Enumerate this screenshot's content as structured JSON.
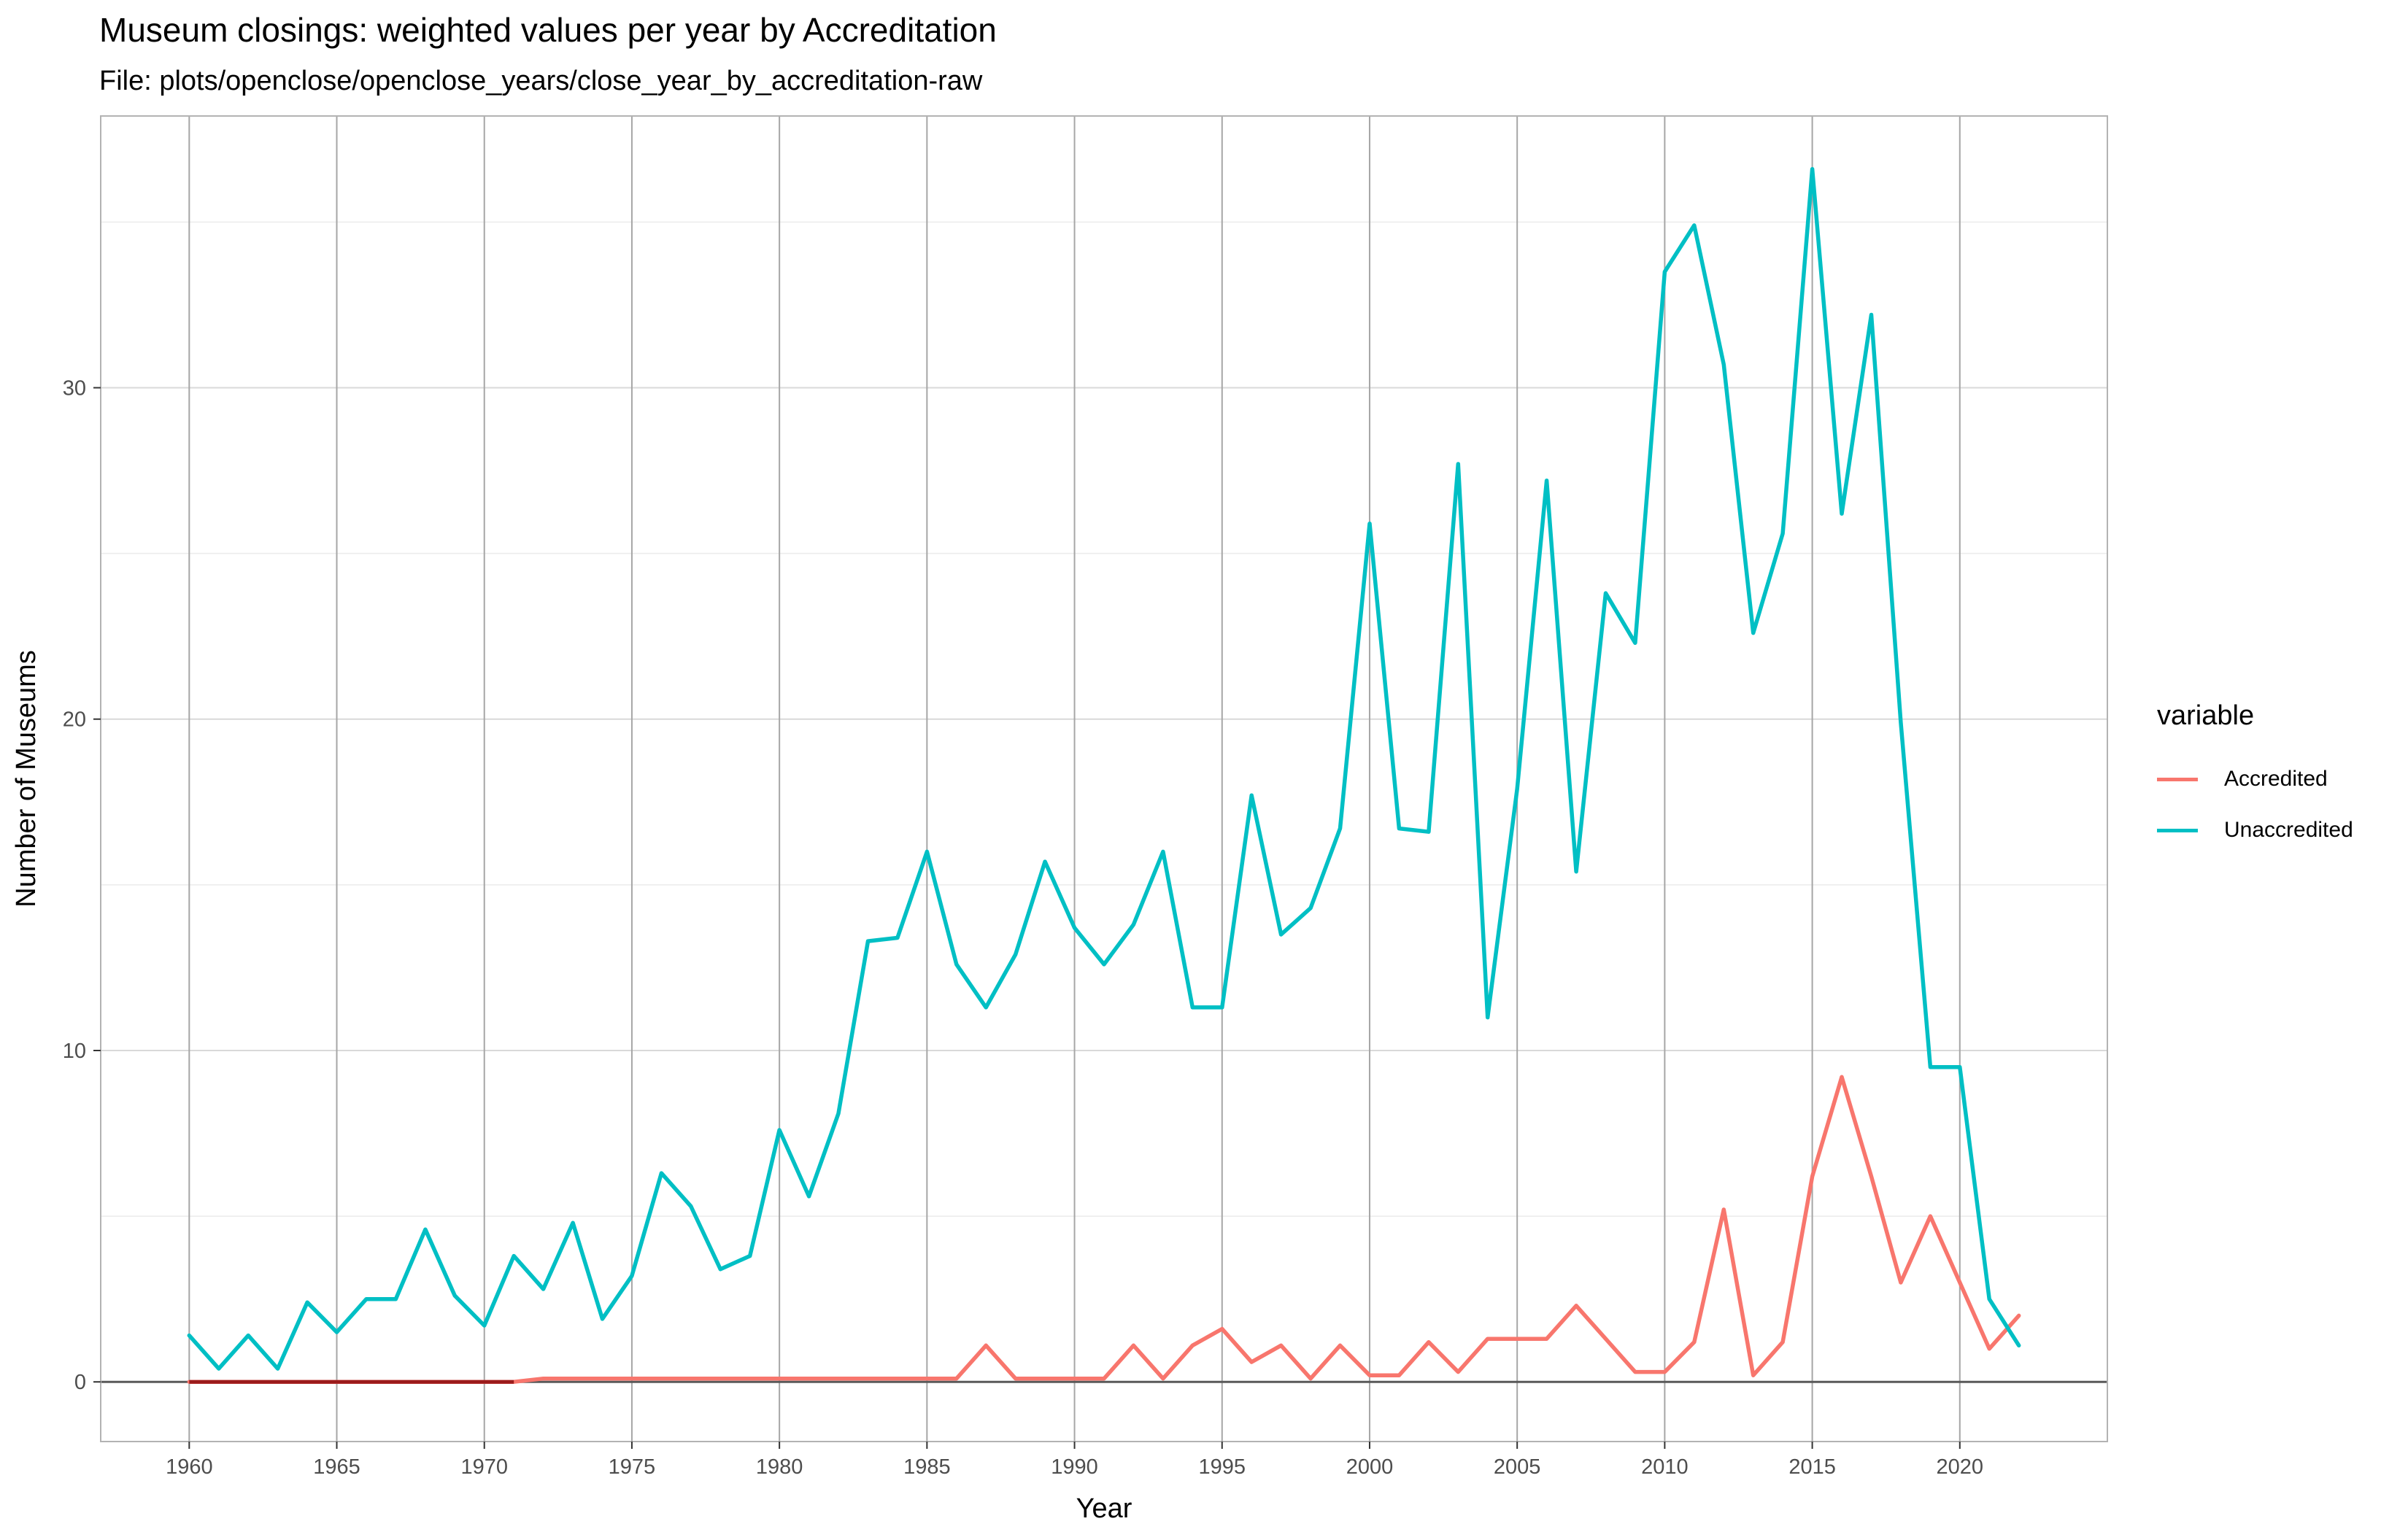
{
  "title": "Museum closings: weighted values per year by Accreditation",
  "subtitle": "File: plots/openclose/openclose_years/close_year_by_accreditation-raw",
  "chart_data": {
    "type": "line",
    "title": "Museum closings: weighted values per year by Accreditation",
    "subtitle": "File: plots/openclose/openclose_years/close_year_by_accreditation-raw",
    "xlabel": "Year",
    "ylabel": "Number of Museums",
    "xlim": [
      1957,
      2025
    ],
    "ylim": [
      -1.8,
      38.2
    ],
    "x_ticks": [
      1960,
      1965,
      1970,
      1975,
      1980,
      1985,
      1990,
      1995,
      2000,
      2005,
      2010,
      2015,
      2020
    ],
    "y_ticks": [
      0,
      10,
      20,
      30
    ],
    "grid": true,
    "legend": {
      "title": "variable",
      "placement": "right"
    },
    "x": [
      1960,
      1961,
      1962,
      1963,
      1964,
      1965,
      1966,
      1967,
      1968,
      1969,
      1970,
      1971,
      1972,
      1973,
      1974,
      1975,
      1976,
      1977,
      1978,
      1979,
      1980,
      1981,
      1982,
      1983,
      1984,
      1985,
      1986,
      1987,
      1988,
      1989,
      1990,
      1991,
      1992,
      1993,
      1994,
      1995,
      1996,
      1997,
      1998,
      1999,
      2000,
      2001,
      2002,
      2003,
      2004,
      2005,
      2006,
      2007,
      2008,
      2009,
      2010,
      2011,
      2012,
      2013,
      2014,
      2015,
      2016,
      2017,
      2018,
      2019,
      2020,
      2021,
      2022
    ],
    "series": [
      {
        "name": "Accredited",
        "color": "#F8766D",
        "values": [
          0,
          0,
          0,
          0,
          0,
          0,
          0,
          0,
          0,
          0,
          0,
          0,
          0.1,
          0.1,
          0.1,
          0.1,
          0.1,
          0.1,
          0.1,
          0.1,
          0.1,
          0.1,
          0.1,
          0.1,
          0.1,
          0.1,
          0.1,
          1.1,
          0.1,
          0.1,
          0.1,
          0.1,
          1.1,
          0.1,
          1.1,
          1.6,
          0.6,
          1.1,
          0.1,
          1.1,
          0.2,
          0.2,
          1.2,
          0.3,
          1.3,
          1.3,
          1.3,
          2.3,
          1.3,
          0.3,
          0.3,
          1.2,
          5.2,
          0.2,
          1.2,
          6.2,
          9.2,
          6.2,
          3.0,
          5.0,
          3.0,
          1.0,
          2.0
        ]
      },
      {
        "name": "Unaccredited",
        "color": "#00BFC4",
        "values": [
          1.4,
          0.4,
          1.4,
          0.4,
          2.4,
          1.5,
          2.5,
          2.5,
          4.6,
          2.6,
          1.7,
          3.8,
          2.8,
          4.8,
          1.9,
          3.2,
          6.3,
          5.3,
          3.4,
          3.8,
          7.6,
          5.6,
          8.1,
          13.3,
          13.4,
          16.0,
          12.6,
          11.3,
          12.9,
          15.7,
          13.7,
          12.6,
          13.8,
          16.0,
          11.3,
          11.3,
          17.7,
          13.5,
          14.3,
          16.7,
          25.9,
          16.7,
          16.6,
          27.7,
          11.0,
          17.9,
          27.2,
          15.4,
          23.8,
          22.3,
          33.5,
          34.9,
          30.7,
          22.6,
          25.6,
          36.6,
          26.2,
          32.2,
          19.9,
          9.5,
          9.5,
          2.5,
          1.1
        ]
      }
    ]
  }
}
